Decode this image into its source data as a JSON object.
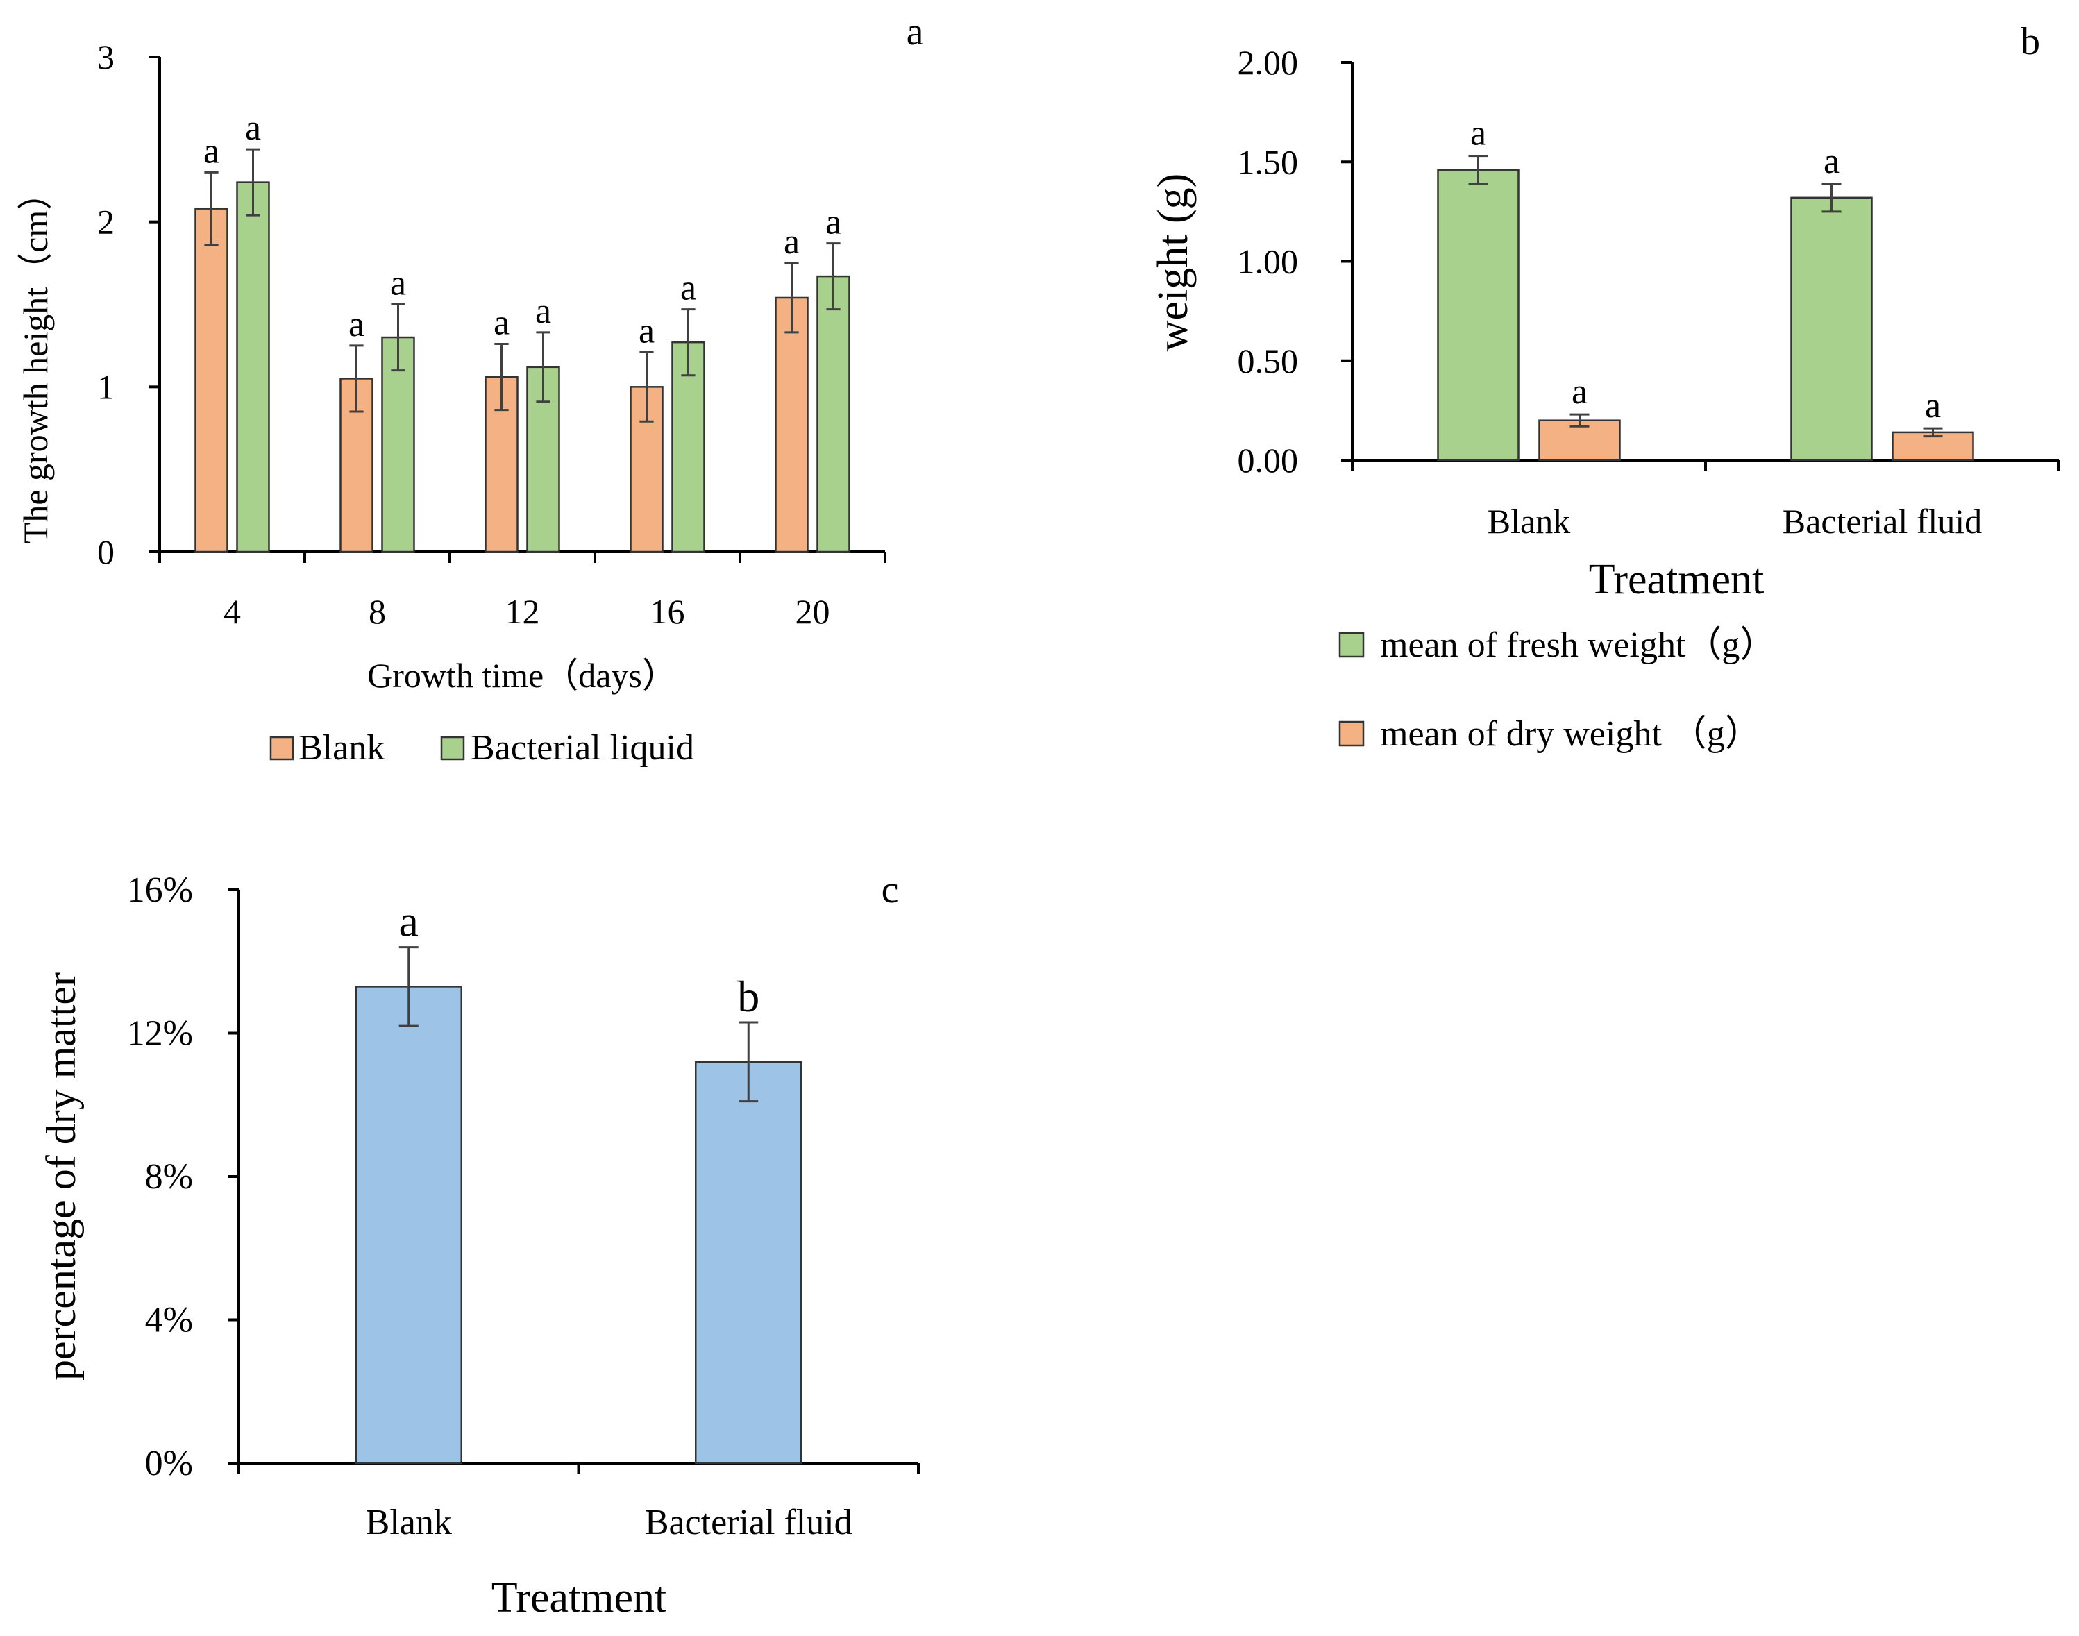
{
  "chart_data": [
    {
      "id": "a",
      "type": "bar",
      "panel_label": "a",
      "categories": [
        "4",
        "8",
        "12",
        "16",
        "20"
      ],
      "series": [
        {
          "name": "Blank",
          "color": "#F4B183",
          "values": [
            2.08,
            1.05,
            1.06,
            1.0,
            1.54
          ],
          "errors": [
            0.22,
            0.2,
            0.2,
            0.21,
            0.21
          ],
          "sig": [
            "a",
            "a",
            "a",
            "a",
            "a"
          ]
        },
        {
          "name": "Bacterial liquid",
          "color": "#A9D18E",
          "values": [
            2.24,
            1.3,
            1.12,
            1.27,
            1.67
          ],
          "errors": [
            0.2,
            0.2,
            0.21,
            0.2,
            0.2
          ],
          "sig": [
            "a",
            "a",
            "a",
            "a",
            "a"
          ]
        }
      ],
      "xlabel": "Growth time（days）",
      "ylabel": "The growth height（cm）",
      "ylim": [
        0,
        3
      ],
      "yticks": [
        "0",
        "1",
        "2",
        "3"
      ],
      "legend_position": "bottom"
    },
    {
      "id": "b",
      "type": "bar",
      "panel_label": "b",
      "categories": [
        "Blank",
        "Bacterial fluid"
      ],
      "series": [
        {
          "name": "mean of fresh weight（g）",
          "color": "#A9D18E",
          "values": [
            1.46,
            1.32
          ],
          "errors": [
            0.07,
            0.07
          ],
          "sig": [
            "a",
            "a"
          ]
        },
        {
          "name": "mean of dry weight （g）",
          "color": "#F4B183",
          "values": [
            0.2,
            0.14
          ],
          "errors": [
            0.03,
            0.02
          ],
          "sig": [
            "a",
            "a"
          ]
        }
      ],
      "xlabel": "Treatment",
      "ylabel": "weight (g)",
      "ylim": [
        0,
        2
      ],
      "yticks": [
        "0.00",
        "0.50",
        "1.00",
        "1.50",
        "2.00"
      ],
      "legend_position": "bottom-left"
    },
    {
      "id": "c",
      "type": "bar",
      "panel_label": "c",
      "categories": [
        "Blank",
        "Bacterial fluid"
      ],
      "series": [
        {
          "name": "percentage of dry matter",
          "color": "#9DC3E6",
          "values": [
            13.3,
            11.2
          ],
          "errors": [
            1.1,
            1.1
          ],
          "sig": [
            "a",
            "b"
          ]
        }
      ],
      "xlabel": "Treatment",
      "ylabel": "percentage of dry matter",
      "ylim": [
        0,
        16
      ],
      "yticks": [
        "0%",
        "4%",
        "8%",
        "12%",
        "16%"
      ],
      "legend_position": "none"
    }
  ]
}
